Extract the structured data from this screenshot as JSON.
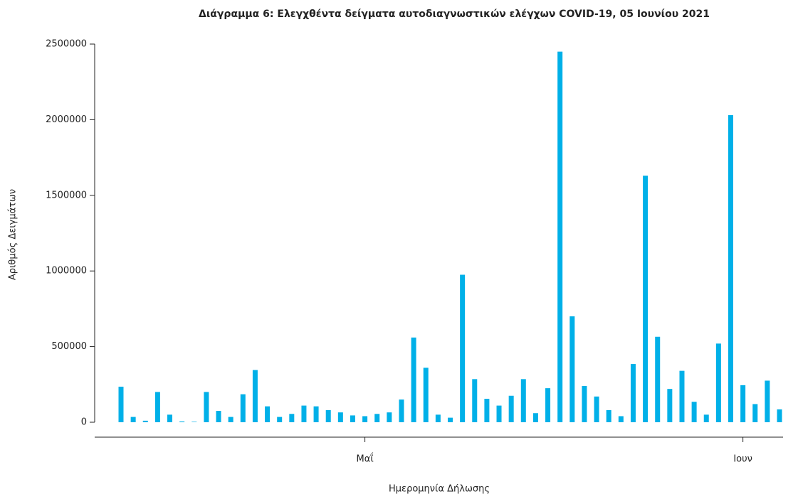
{
  "chart_data": {
    "type": "bar",
    "title": "Διάγραμμα 6: Ελεγχθέντα δείγματα αυτοδιαγνωστικών ελέγχων COVID-19, 05 Ιουνίου 2021",
    "x_label": "Ημερομηνία Δήλωσης",
    "y_label": "Αριθμός Δειγμάτων",
    "color": "#00b0e8",
    "categories": [
      null,
      null,
      null,
      null,
      null,
      null,
      null,
      null,
      null,
      null,
      null,
      null,
      null,
      null,
      null,
      null,
      null,
      null,
      null,
      null,
      "Μαΐ",
      null,
      null,
      null,
      null,
      null,
      null,
      null,
      null,
      null,
      null,
      null,
      null,
      null,
      null,
      null,
      null,
      null,
      null,
      null,
      null,
      null,
      null,
      null,
      null,
      null,
      null,
      null,
      null,
      null,
      null,
      "Ιουν",
      null,
      null,
      null
    ],
    "values": [
      235000,
      35000,
      10000,
      200000,
      50000,
      5000,
      3000,
      200000,
      75000,
      35000,
      185000,
      345000,
      105000,
      35000,
      55000,
      110000,
      105000,
      80000,
      65000,
      45000,
      40000,
      55000,
      65000,
      150000,
      560000,
      360000,
      50000,
      30000,
      975000,
      285000,
      155000,
      110000,
      175000,
      285000,
      60000,
      225000,
      2450000,
      700000,
      240000,
      170000,
      80000,
      40000,
      385000,
      1630000,
      565000,
      220000,
      340000,
      135000,
      50000,
      520000,
      2030000,
      245000,
      120000,
      275000,
      85000
    ],
    "ylim": [
      0,
      2500000
    ],
    "yticks": [
      0,
      500000,
      1000000,
      1500000,
      2000000,
      2500000
    ]
  }
}
